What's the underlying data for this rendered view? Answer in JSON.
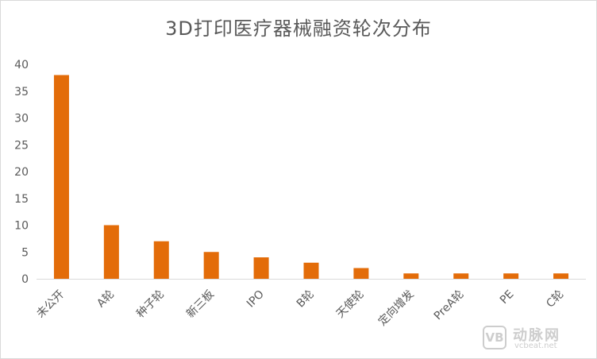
{
  "chart_data": {
    "type": "bar",
    "title": "3D打印医疗器械融资轮次分布",
    "categories": [
      "未公开",
      "A轮",
      "种子轮",
      "新三板",
      "IPO",
      "B轮",
      "天使轮",
      "定向增发",
      "PreA轮",
      "PE",
      "C轮"
    ],
    "values": [
      38,
      10,
      7,
      5,
      4,
      3,
      2,
      1,
      1,
      1,
      1
    ],
    "ylim": [
      0,
      40
    ],
    "yticks": [
      0,
      5,
      10,
      15,
      20,
      25,
      30,
      35,
      40
    ],
    "grid": false,
    "legend": "none",
    "bar_color": "#e36c09"
  },
  "watermark": {
    "badge": "VB",
    "name": "动脉网",
    "url": "vcbeat.net"
  }
}
